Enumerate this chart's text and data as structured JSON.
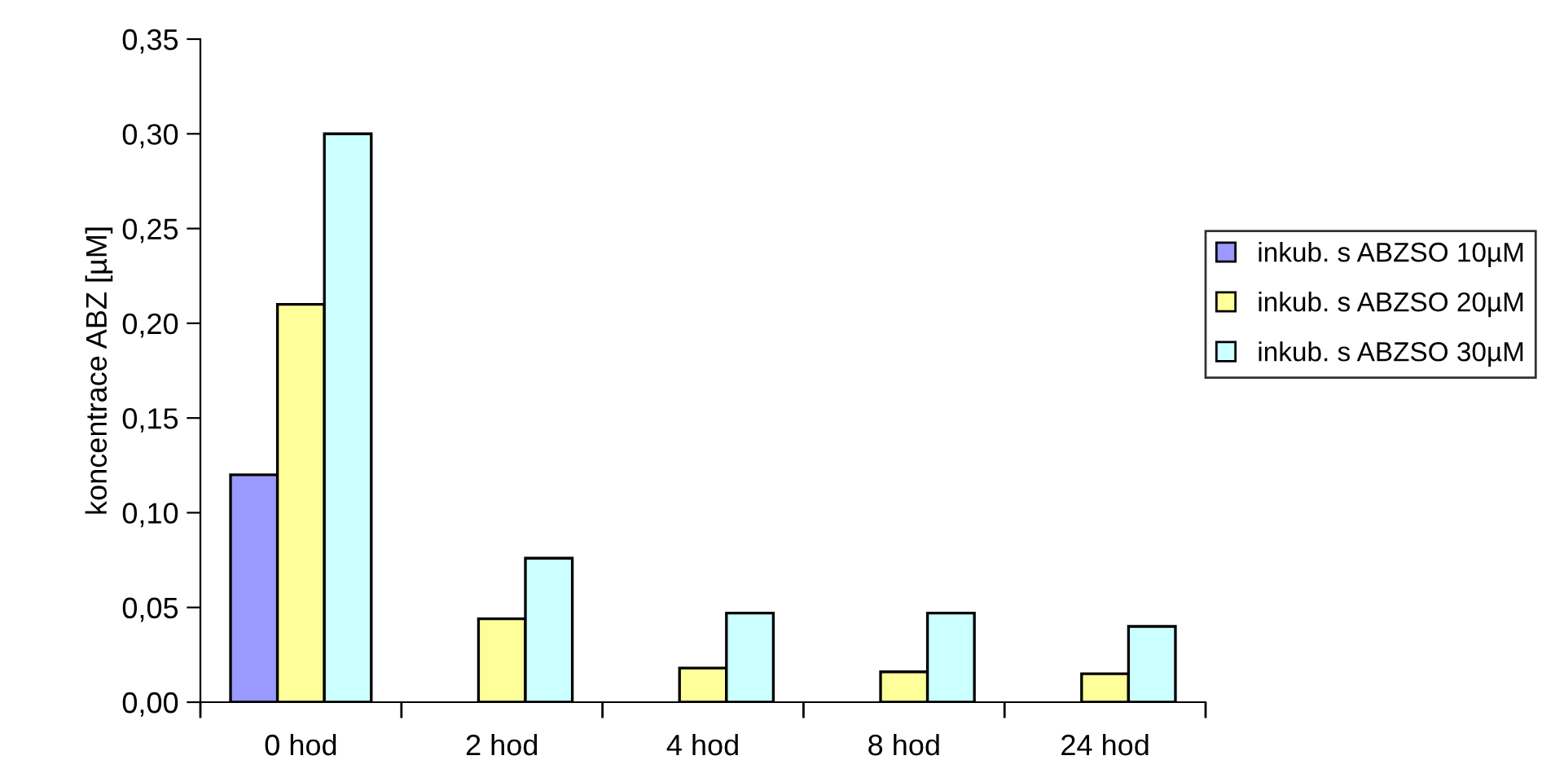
{
  "chart_data": {
    "type": "bar",
    "ylabel": "koncentrace ABZ [µM]",
    "categories": [
      "0 hod",
      "2 hod",
      "4 hod",
      "8 hod",
      "24 hod"
    ],
    "series": [
      {
        "name": "inkub. s ABZSO 10µM",
        "color": "#9999ff",
        "values": [
          0.12,
          null,
          null,
          null,
          null
        ]
      },
      {
        "name": "inkub. s ABZSO 20µM",
        "color": "#ffff99",
        "values": [
          0.21,
          0.044,
          0.018,
          0.016,
          0.015
        ]
      },
      {
        "name": "inkub. s ABZSO 30µM",
        "color": "#ccffff",
        "values": [
          0.3,
          0.076,
          0.047,
          0.047,
          0.04
        ]
      }
    ],
    "ylim": [
      0,
      0.35
    ],
    "yticks": [
      {
        "value": 0,
        "label": "0,00"
      },
      {
        "value": 0.05,
        "label": "0,05"
      },
      {
        "value": 0.1,
        "label": "0,10"
      },
      {
        "value": 0.15,
        "label": "0,15"
      },
      {
        "value": 0.2,
        "label": "0,20"
      },
      {
        "value": 0.25,
        "label": "0,25"
      },
      {
        "value": 0.3,
        "label": "0,30"
      },
      {
        "value": 0.35,
        "label": "0,35"
      }
    ],
    "grid": false,
    "legend": "right"
  }
}
